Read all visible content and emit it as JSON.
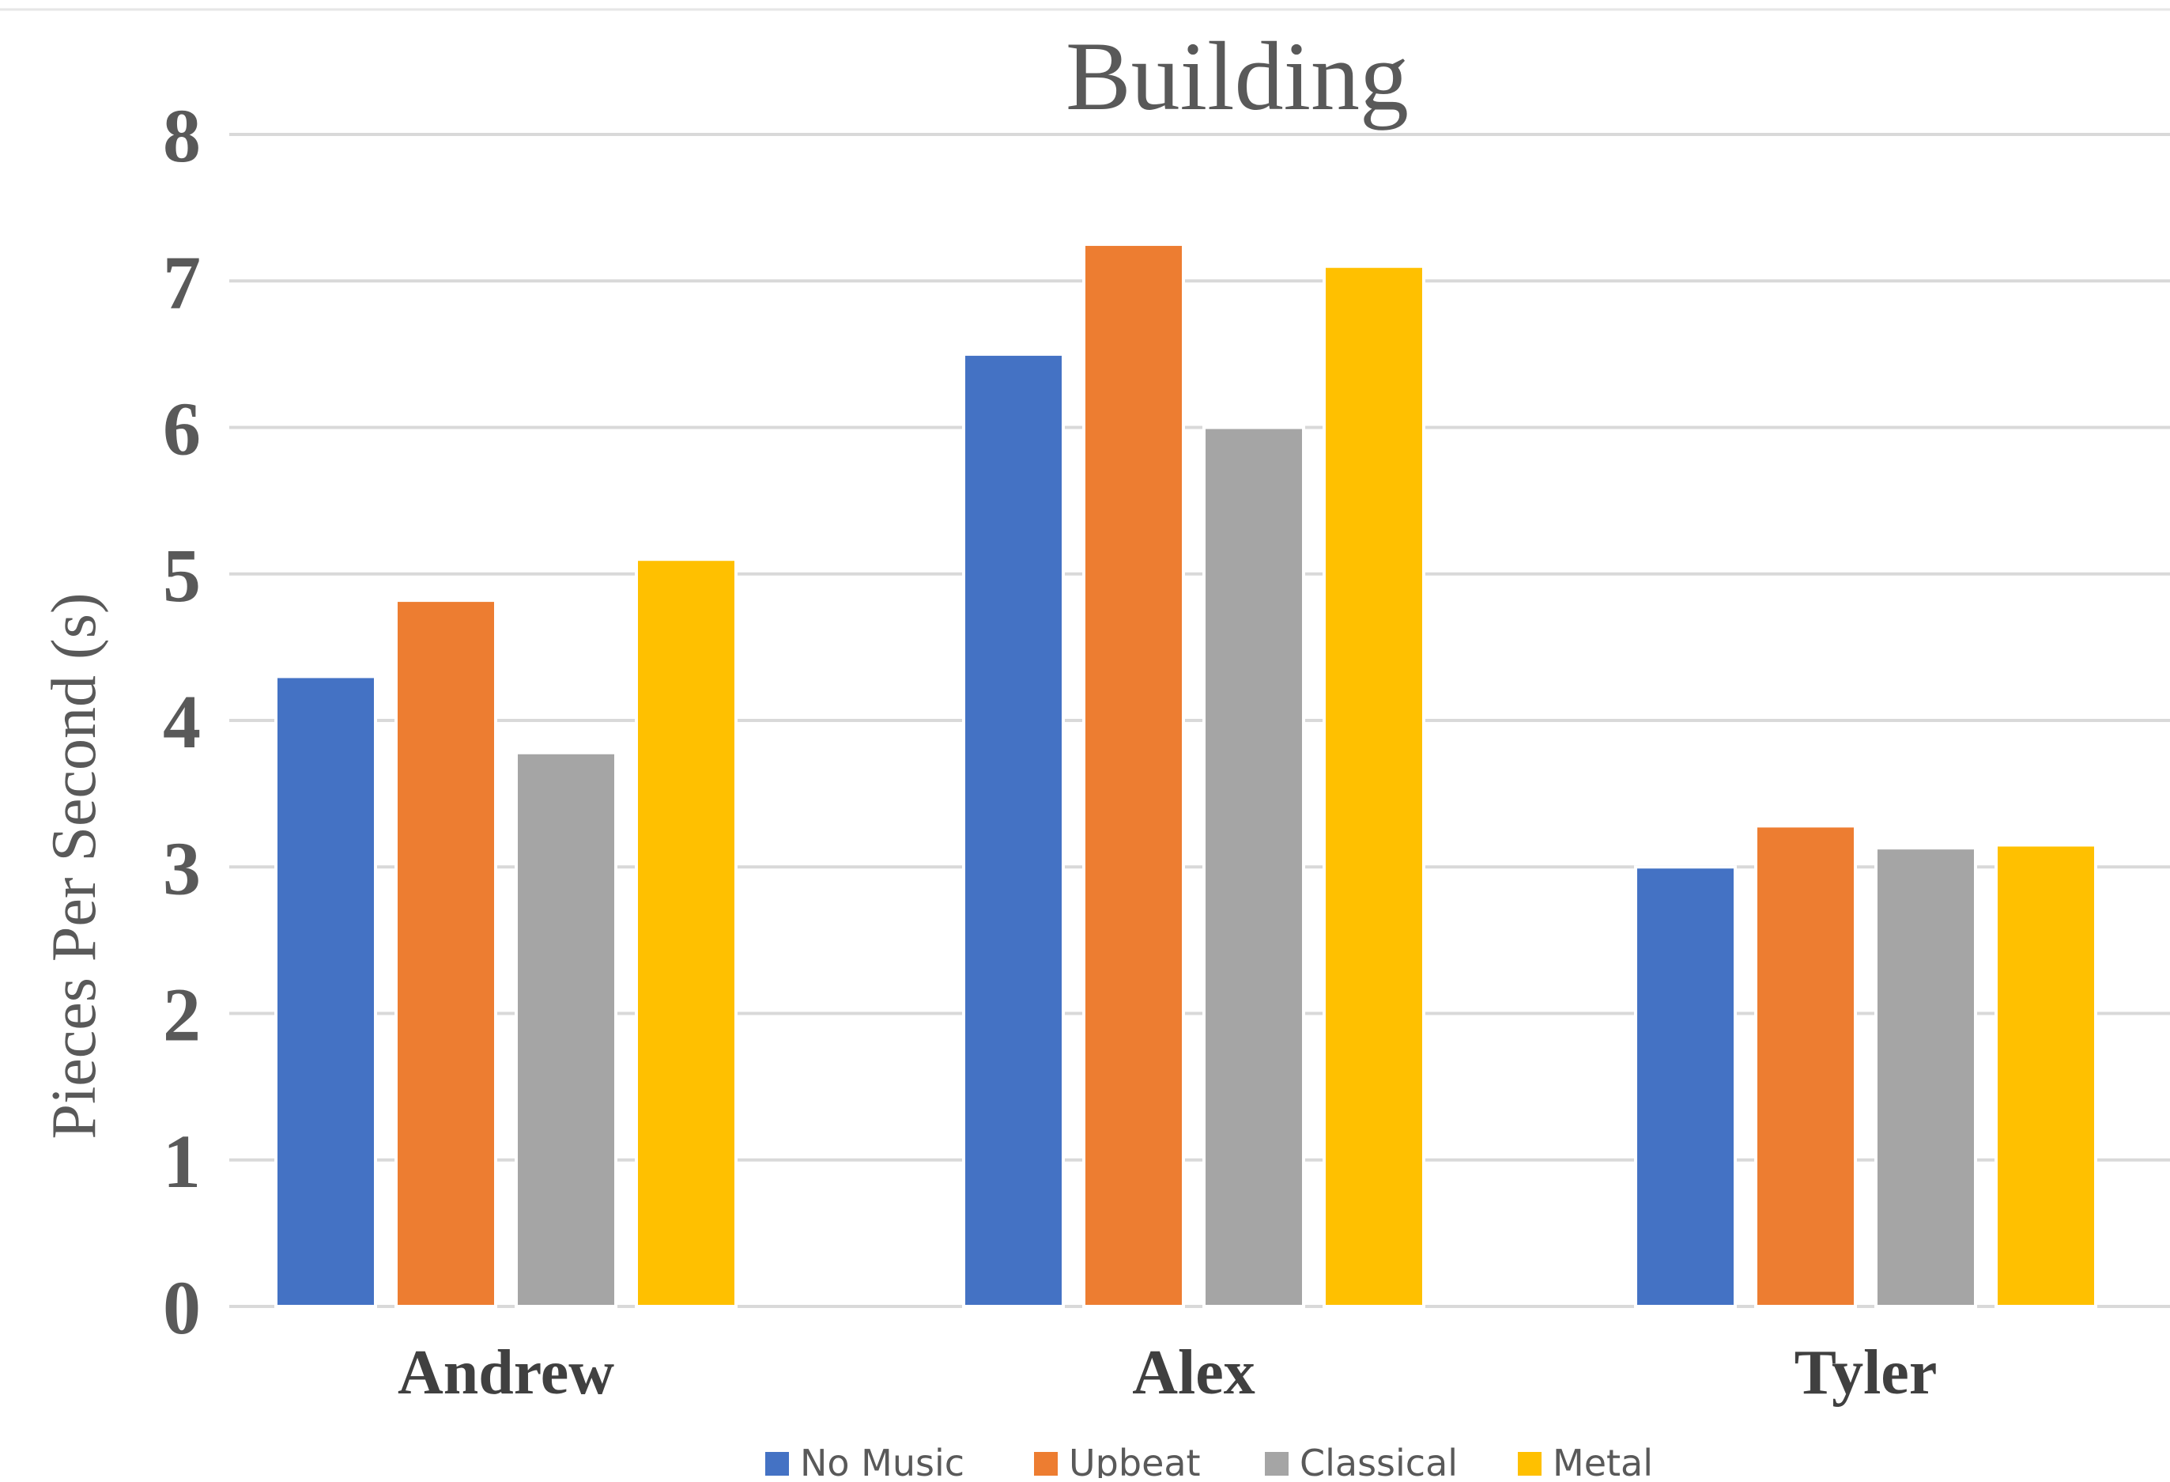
{
  "chart_data": {
    "type": "bar",
    "title": "Building",
    "ylabel": "Pieces Per Second (s)",
    "xlabel": "",
    "categories": [
      "Andrew",
      "Alex",
      "Tyler"
    ],
    "series": [
      {
        "name": "No Music",
        "color": "#4472c4",
        "values": [
          4.3,
          6.5,
          3.0
        ]
      },
      {
        "name": "Upbeat",
        "color": "#ed7d31",
        "values": [
          4.82,
          7.25,
          3.28
        ]
      },
      {
        "name": "Classical",
        "color": "#a5a5a5",
        "values": [
          3.78,
          6.0,
          3.13
        ]
      },
      {
        "name": "Metal",
        "color": "#ffc000",
        "values": [
          5.1,
          7.1,
          3.15
        ]
      }
    ],
    "ylim": [
      0,
      8
    ],
    "yticks": [
      "0",
      "1",
      "2",
      "3",
      "4",
      "5",
      "6",
      "7",
      "8"
    ],
    "grid": true,
    "legend_position": "bottom"
  }
}
